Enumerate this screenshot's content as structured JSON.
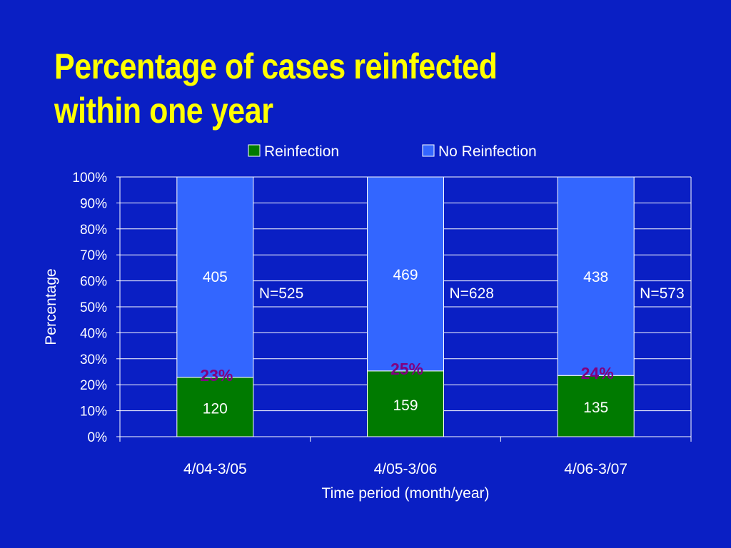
{
  "slide": {
    "title_line1": "Percentage of cases reinfected",
    "title_line2": "within one year"
  },
  "colors": {
    "background": "#0a1fc4",
    "title": "#ffff00",
    "reinfection": "#007a00",
    "no_reinfection": "#3366ff",
    "percent_label": "#800080",
    "text": "#ffffff"
  },
  "chart_data": {
    "type": "bar",
    "stacked": true,
    "normalized": true,
    "categories": [
      "4/04-3/05",
      "4/05-3/06",
      "4/06-3/07"
    ],
    "series": [
      {
        "name": "Reinfection",
        "values": [
          120,
          159,
          135
        ],
        "percent_labels": [
          "23%",
          "25%",
          "24%"
        ]
      },
      {
        "name": "No Reinfection",
        "values": [
          405,
          469,
          438
        ]
      }
    ],
    "totals": [
      "N=525",
      "N=628",
      "N=573"
    ],
    "xlabel": "Time period (month/year)",
    "ylabel": "Percentage",
    "ylim": [
      0,
      100
    ],
    "yticks": [
      "0%",
      "10%",
      "20%",
      "30%",
      "40%",
      "50%",
      "60%",
      "70%",
      "80%",
      "90%",
      "100%"
    ],
    "legend_position": "top",
    "grid": true
  }
}
